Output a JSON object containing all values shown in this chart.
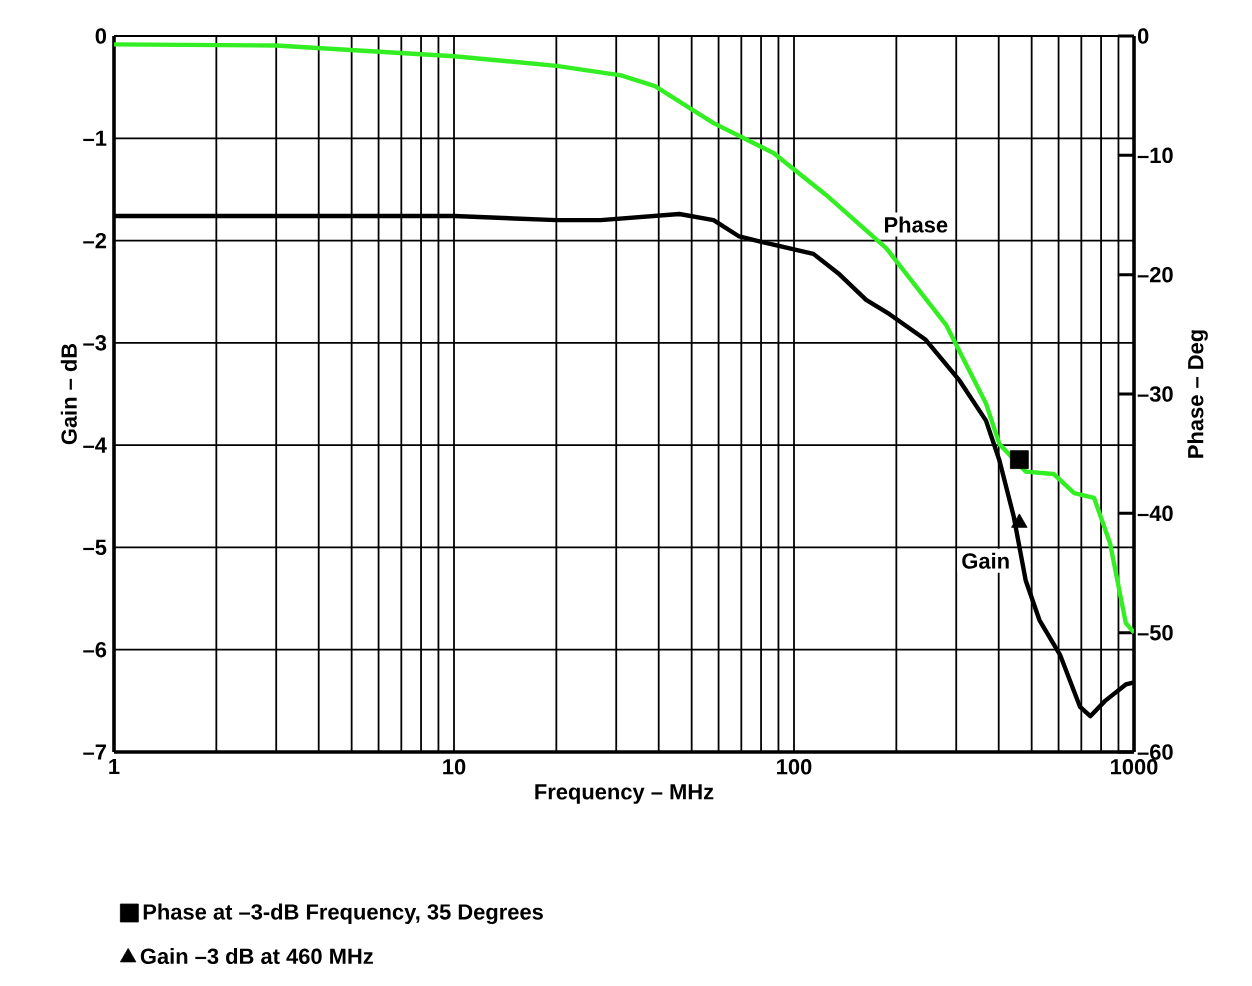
{
  "chart_data": {
    "type": "line",
    "xlabel": "Frequency – MHz",
    "ylabel": "Gain – dB",
    "y2label": "Phase – Deg",
    "log": "x",
    "grid": true,
    "legend": "bottom",
    "line_style": "solid",
    "marker": "none",
    "xlim": [
      1,
      1000
    ],
    "xticks": [
      1,
      10,
      100,
      1000
    ],
    "ylim": [
      -7,
      0
    ],
    "yticks": [
      {
        "value": -7,
        "label": "–7"
      },
      {
        "value": -6,
        "label": "–6"
      },
      {
        "value": -5,
        "label": "–5"
      },
      {
        "value": -4,
        "label": "–4"
      },
      {
        "value": -3,
        "label": "–3"
      },
      {
        "value": -2,
        "label": "–2"
      },
      {
        "value": -1,
        "label": "–1"
      },
      0
    ],
    "y2lim": [
      -60,
      0
    ],
    "y2ticks": [
      {
        "value": -60,
        "label": "–60"
      },
      {
        "value": -50,
        "label": "–50"
      },
      {
        "value": -40,
        "label": "–40"
      },
      {
        "value": -30,
        "label": "–30"
      },
      {
        "value": -20,
        "label": "–20"
      },
      {
        "value": -10,
        "label": "–10"
      },
      0
    ],
    "series": [
      {
        "name": "Phase",
        "type": "line",
        "axis": "y2",
        "color": "#33ee22",
        "x": [
          1,
          3,
          10,
          20,
          31,
          39,
          58,
          87,
          124,
          187,
          280,
          367,
          402,
          480,
          580,
          667,
          763,
          850,
          946,
          1000
        ],
        "values": [
          -0.7,
          -0.8,
          -1.7,
          -2.5,
          -3.3,
          -4.2,
          -7.3,
          -9.8,
          -13.3,
          -17.8,
          -24.2,
          -30.8,
          -34.2,
          -36.5,
          -36.7,
          -38.3,
          -38.7,
          -42.5,
          -49.2,
          -50
        ]
      },
      {
        "name": "Gain",
        "type": "line",
        "axis": "y",
        "color": "#000000",
        "x": [
          1,
          10,
          20,
          27,
          46,
          58,
          69,
          87,
          114,
          136,
          163,
          191,
          244,
          307,
          367,
          402,
          443,
          480,
          527,
          606,
          694,
          744,
          822,
          946,
          1000
        ],
        "values": [
          -1.76,
          -1.76,
          -1.8,
          -1.8,
          -1.74,
          -1.8,
          -1.96,
          -2.04,
          -2.13,
          -2.33,
          -2.58,
          -2.72,
          -2.97,
          -3.37,
          -3.76,
          -4.15,
          -4.7,
          -5.32,
          -5.71,
          -6.05,
          -6.56,
          -6.65,
          -6.5,
          -6.34,
          -6.32
        ]
      },
      {
        "name": "Phase at –3-dB Frequency, 35 Degrees",
        "type": "scatter",
        "axis": "y2",
        "marker": "square",
        "color": "#000000",
        "x": [
          460
        ],
        "values": [
          -35.5
        ]
      },
      {
        "name": "Gain –3 dB at 460 MHz",
        "type": "scatter",
        "axis": "y",
        "marker": "triangle",
        "color": "#000000",
        "x": [
          460
        ],
        "values": [
          -4.76
        ]
      }
    ]
  }
}
